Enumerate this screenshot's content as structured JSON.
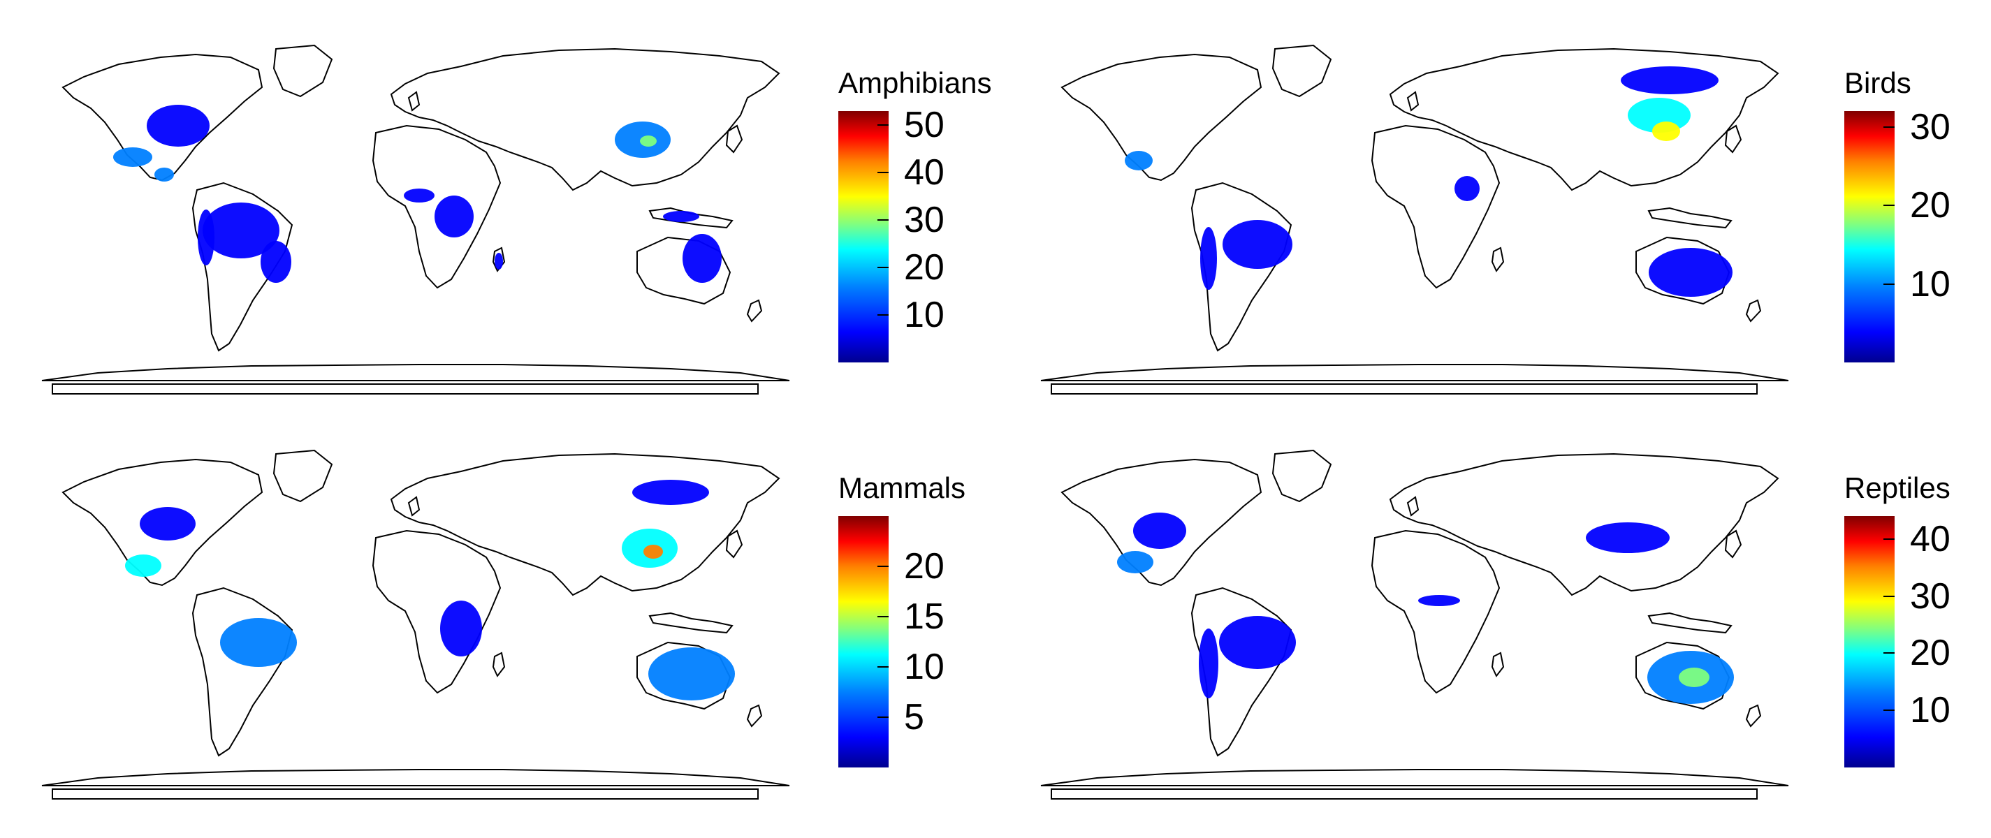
{
  "figure": {
    "panels": [
      {
        "id": "amphibians",
        "legend_title": "Amphibians",
        "scale_max": 53,
        "ticks": [
          {
            "value": 10,
            "label": "10"
          },
          {
            "value": 20,
            "label": "20"
          },
          {
            "value": 30,
            "label": "30"
          },
          {
            "value": 40,
            "label": "40"
          },
          {
            "value": 50,
            "label": "50"
          }
        ]
      },
      {
        "id": "birds",
        "legend_title": "Birds",
        "scale_max": 32,
        "ticks": [
          {
            "value": 10,
            "label": "10"
          },
          {
            "value": 20,
            "label": "20"
          },
          {
            "value": 30,
            "label": "30"
          }
        ]
      },
      {
        "id": "mammals",
        "legend_title": "Mammals",
        "scale_max": 25,
        "ticks": [
          {
            "value": 5,
            "label": "5"
          },
          {
            "value": 10,
            "label": "10"
          },
          {
            "value": 15,
            "label": "15"
          },
          {
            "value": 20,
            "label": "20"
          }
        ]
      },
      {
        "id": "reptiles",
        "legend_title": "Reptiles",
        "scale_max": 44,
        "ticks": [
          {
            "value": 10,
            "label": "10"
          },
          {
            "value": 20,
            "label": "20"
          },
          {
            "value": 30,
            "label": "30"
          },
          {
            "value": 40,
            "label": "40"
          }
        ]
      }
    ],
    "colormap": [
      "#00008f",
      "#0000ff",
      "#0080ff",
      "#00ffff",
      "#80ff80",
      "#ffff00",
      "#ff8000",
      "#ff0000",
      "#800000"
    ]
  }
}
